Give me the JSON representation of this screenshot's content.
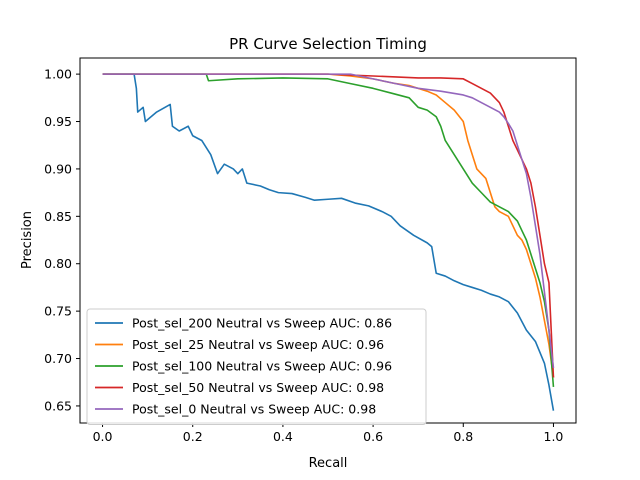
{
  "chart_data": {
    "type": "line",
    "title": "PR Curve Selection Timing",
    "xlabel": "Recall",
    "ylabel": "Precision",
    "xlim": [
      -0.05,
      1.05
    ],
    "ylim": [
      0.632,
      1.017
    ],
    "xticks": [
      0.0,
      0.2,
      0.4,
      0.6,
      0.8,
      1.0
    ],
    "xtick_labels": [
      "0.0",
      "0.2",
      "0.4",
      "0.6",
      "0.8",
      "1.0"
    ],
    "yticks": [
      0.65,
      0.7,
      0.75,
      0.8,
      0.85,
      0.9,
      0.95,
      1.0
    ],
    "ytick_labels": [
      "0.65",
      "0.70",
      "0.75",
      "0.80",
      "0.85",
      "0.90",
      "0.95",
      "1.00"
    ],
    "grid": false,
    "legend_position": "lower-left",
    "series": [
      {
        "name": "Post_sel_200 Neutral vs Sweep AUC: 0.86",
        "color": "#1f77b4",
        "points": [
          [
            0.0,
            1.0
          ],
          [
            0.07,
            1.0
          ],
          [
            0.075,
            0.985
          ],
          [
            0.078,
            0.96
          ],
          [
            0.09,
            0.965
          ],
          [
            0.095,
            0.95
          ],
          [
            0.12,
            0.96
          ],
          [
            0.15,
            0.968
          ],
          [
            0.155,
            0.945
          ],
          [
            0.17,
            0.94
          ],
          [
            0.19,
            0.945
          ],
          [
            0.2,
            0.935
          ],
          [
            0.22,
            0.93
          ],
          [
            0.24,
            0.915
          ],
          [
            0.255,
            0.895
          ],
          [
            0.27,
            0.905
          ],
          [
            0.29,
            0.9
          ],
          [
            0.3,
            0.895
          ],
          [
            0.31,
            0.9
          ],
          [
            0.32,
            0.885
          ],
          [
            0.35,
            0.882
          ],
          [
            0.37,
            0.878
          ],
          [
            0.39,
            0.875
          ],
          [
            0.42,
            0.874
          ],
          [
            0.45,
            0.87
          ],
          [
            0.47,
            0.867
          ],
          [
            0.5,
            0.868
          ],
          [
            0.53,
            0.869
          ],
          [
            0.56,
            0.864
          ],
          [
            0.59,
            0.861
          ],
          [
            0.62,
            0.855
          ],
          [
            0.64,
            0.85
          ],
          [
            0.66,
            0.84
          ],
          [
            0.69,
            0.83
          ],
          [
            0.72,
            0.822
          ],
          [
            0.73,
            0.818
          ],
          [
            0.74,
            0.79
          ],
          [
            0.76,
            0.787
          ],
          [
            0.78,
            0.782
          ],
          [
            0.8,
            0.778
          ],
          [
            0.82,
            0.775
          ],
          [
            0.84,
            0.772
          ],
          [
            0.86,
            0.768
          ],
          [
            0.88,
            0.765
          ],
          [
            0.9,
            0.76
          ],
          [
            0.92,
            0.748
          ],
          [
            0.94,
            0.73
          ],
          [
            0.96,
            0.718
          ],
          [
            0.98,
            0.695
          ],
          [
            0.99,
            0.672
          ],
          [
            1.0,
            0.645
          ]
        ]
      },
      {
        "name": "Post_sel_25 Neutral vs Sweep AUC: 0.96",
        "color": "#ff7f0e",
        "points": [
          [
            0.0,
            1.0
          ],
          [
            0.2,
            1.0
          ],
          [
            0.3,
            1.0
          ],
          [
            0.4,
            1.0
          ],
          [
            0.5,
            1.0
          ],
          [
            0.55,
            0.998
          ],
          [
            0.6,
            0.995
          ],
          [
            0.65,
            0.99
          ],
          [
            0.68,
            0.988
          ],
          [
            0.7,
            0.985
          ],
          [
            0.72,
            0.982
          ],
          [
            0.74,
            0.978
          ],
          [
            0.76,
            0.97
          ],
          [
            0.78,
            0.962
          ],
          [
            0.8,
            0.95
          ],
          [
            0.81,
            0.93
          ],
          [
            0.82,
            0.915
          ],
          [
            0.83,
            0.9
          ],
          [
            0.85,
            0.89
          ],
          [
            0.86,
            0.875
          ],
          [
            0.87,
            0.86
          ],
          [
            0.88,
            0.855
          ],
          [
            0.9,
            0.85
          ],
          [
            0.91,
            0.84
          ],
          [
            0.92,
            0.83
          ],
          [
            0.93,
            0.825
          ],
          [
            0.94,
            0.815
          ],
          [
            0.95,
            0.8
          ],
          [
            0.96,
            0.785
          ],
          [
            0.97,
            0.765
          ],
          [
            0.98,
            0.74
          ],
          [
            0.99,
            0.715
          ],
          [
            1.0,
            0.68
          ]
        ]
      },
      {
        "name": "Post_sel_100 Neutral vs Sweep AUC: 0.96",
        "color": "#2ca02c",
        "points": [
          [
            0.0,
            1.0
          ],
          [
            0.23,
            1.0
          ],
          [
            0.235,
            0.993
          ],
          [
            0.3,
            0.995
          ],
          [
            0.4,
            0.996
          ],
          [
            0.5,
            0.995
          ],
          [
            0.55,
            0.99
          ],
          [
            0.6,
            0.985
          ],
          [
            0.64,
            0.98
          ],
          [
            0.68,
            0.975
          ],
          [
            0.7,
            0.965
          ],
          [
            0.72,
            0.962
          ],
          [
            0.74,
            0.955
          ],
          [
            0.75,
            0.945
          ],
          [
            0.76,
            0.93
          ],
          [
            0.78,
            0.915
          ],
          [
            0.8,
            0.9
          ],
          [
            0.82,
            0.885
          ],
          [
            0.84,
            0.875
          ],
          [
            0.86,
            0.865
          ],
          [
            0.88,
            0.86
          ],
          [
            0.9,
            0.855
          ],
          [
            0.92,
            0.845
          ],
          [
            0.93,
            0.835
          ],
          [
            0.94,
            0.825
          ],
          [
            0.95,
            0.81
          ],
          [
            0.96,
            0.795
          ],
          [
            0.97,
            0.78
          ],
          [
            0.98,
            0.76
          ],
          [
            0.99,
            0.73
          ],
          [
            1.0,
            0.67
          ]
        ]
      },
      {
        "name": "Post_sel_50 Neutral vs Sweep AUC: 0.98",
        "color": "#d62728",
        "points": [
          [
            0.0,
            1.0
          ],
          [
            0.3,
            1.0
          ],
          [
            0.5,
            1.0
          ],
          [
            0.6,
            0.998
          ],
          [
            0.65,
            0.997
          ],
          [
            0.7,
            0.996
          ],
          [
            0.75,
            0.996
          ],
          [
            0.8,
            0.995
          ],
          [
            0.82,
            0.99
          ],
          [
            0.84,
            0.985
          ],
          [
            0.86,
            0.98
          ],
          [
            0.88,
            0.97
          ],
          [
            0.89,
            0.96
          ],
          [
            0.9,
            0.945
          ],
          [
            0.91,
            0.93
          ],
          [
            0.92,
            0.92
          ],
          [
            0.93,
            0.91
          ],
          [
            0.94,
            0.9
          ],
          [
            0.95,
            0.885
          ],
          [
            0.96,
            0.86
          ],
          [
            0.97,
            0.83
          ],
          [
            0.98,
            0.8
          ],
          [
            0.99,
            0.78
          ],
          [
            1.0,
            0.68
          ]
        ]
      },
      {
        "name": "Post_sel_0 Neutral vs Sweep AUC: 0.98",
        "color": "#9467bd",
        "points": [
          [
            0.0,
            1.0
          ],
          [
            0.2,
            1.0
          ],
          [
            0.4,
            1.0
          ],
          [
            0.55,
            1.0
          ],
          [
            0.6,
            0.995
          ],
          [
            0.65,
            0.99
          ],
          [
            0.7,
            0.985
          ],
          [
            0.75,
            0.982
          ],
          [
            0.8,
            0.978
          ],
          [
            0.82,
            0.975
          ],
          [
            0.84,
            0.97
          ],
          [
            0.86,
            0.965
          ],
          [
            0.88,
            0.96
          ],
          [
            0.89,
            0.955
          ],
          [
            0.9,
            0.948
          ],
          [
            0.91,
            0.94
          ],
          [
            0.92,
            0.925
          ],
          [
            0.93,
            0.91
          ],
          [
            0.94,
            0.895
          ],
          [
            0.95,
            0.87
          ],
          [
            0.96,
            0.84
          ],
          [
            0.97,
            0.81
          ],
          [
            0.98,
            0.77
          ],
          [
            0.99,
            0.73
          ],
          [
            1.0,
            0.69
          ]
        ]
      }
    ]
  }
}
